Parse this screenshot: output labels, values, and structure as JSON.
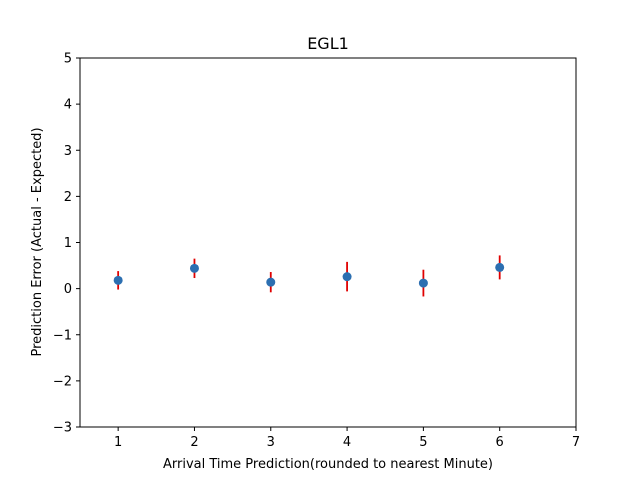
{
  "chart_data": {
    "type": "scatter",
    "title": "EGL1",
    "xlabel": "Arrival Time Prediction(rounded to nearest Minute)",
    "ylabel": "Prediction Error (Actual - Expected)",
    "xlim": [
      0.5,
      7
    ],
    "ylim": [
      -3,
      5
    ],
    "xticks": [
      1,
      2,
      3,
      4,
      5,
      6,
      7
    ],
    "xtick_labels": [
      "1",
      "2",
      "3",
      "4",
      "5",
      "6",
      "7"
    ],
    "yticks": [
      -3,
      -2,
      -1,
      0,
      1,
      2,
      3,
      4,
      5
    ],
    "ytick_labels": [
      "−3",
      "−2",
      "−1",
      "0",
      "1",
      "2",
      "3",
      "4",
      "5"
    ],
    "grid": false,
    "x": [
      1,
      2,
      3,
      4,
      5,
      6
    ],
    "y": [
      0.18,
      0.44,
      0.14,
      0.26,
      0.12,
      0.46
    ],
    "yerr": [
      0.2,
      0.21,
      0.22,
      0.32,
      0.29,
      0.26
    ],
    "marker_color": "#2c6fb1",
    "errorbar_color": "#e00000"
  }
}
